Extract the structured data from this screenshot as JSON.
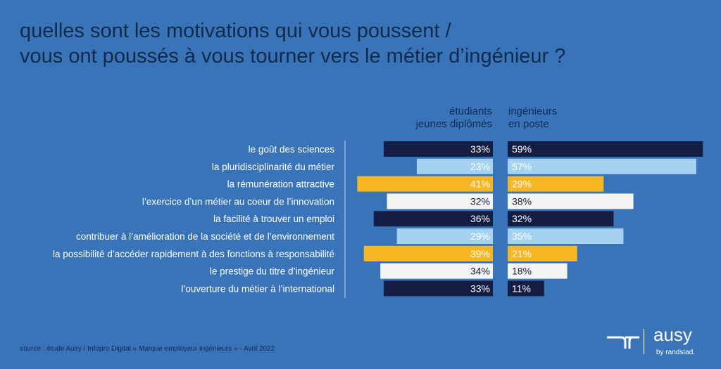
{
  "title_lines": [
    "quelles sont les motivations qui vous poussent /",
    "vous ont poussés à vous tourner vers le métier d’ingénieur ?"
  ],
  "source": "source : étude Ausy / Infopro Digital « Marque employeur ingénieurs » - Avril 2022",
  "brand": {
    "name": "ausy",
    "sub": "by randstad."
  },
  "colors": {
    "navy": "#141d44",
    "light_blue": "#a6d2f1",
    "yellow": "#f7b623",
    "white": "#f4f4f2",
    "label_text": "#ffffff",
    "title_text": "#102a4c"
  },
  "chart_data": {
    "type": "bar",
    "layout": "back-to-back horizontal",
    "categories": [
      "le goût des sciences",
      "la pluridisciplinarité du métier",
      "la rémunération attractive",
      "l’exercice d’un métier au coeur de l’innovation",
      "la facilité à trouver un emploi",
      "contribuer à l’amélioration de la société et de l’environnement",
      "la possibilité d’accéder rapidement à des fonctions à responsabilité",
      "le prestige du titre d’ingénieur",
      "l’ouverture du métier à l’international"
    ],
    "bar_colors": [
      "navy",
      "light_blue",
      "yellow",
      "white",
      "navy",
      "light_blue",
      "yellow",
      "white",
      "navy"
    ],
    "series": [
      {
        "name": "étudiants\njeunes diplômés",
        "name_lines": [
          "étudiants",
          "jeunes diplômés"
        ],
        "values": [
          33,
          23,
          41,
          32,
          36,
          29,
          39,
          34,
          33
        ]
      },
      {
        "name": "ingénieurs\nen poste",
        "name_lines": [
          "ingénieurs",
          "en poste"
        ],
        "values": [
          59,
          57,
          29,
          38,
          32,
          35,
          21,
          18,
          11
        ]
      }
    ],
    "unit": "%",
    "xlim": [
      0,
      60
    ]
  }
}
